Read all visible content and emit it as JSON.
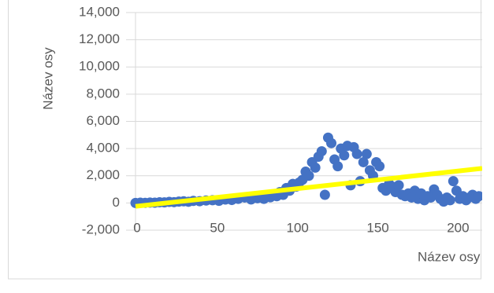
{
  "chart_data": {
    "type": "scatter",
    "y_axis_title": "Název osy",
    "x_axis_title": "Název osy",
    "xlim": [
      0,
      216
    ],
    "ylim": [
      -2000,
      14000
    ],
    "xticks": [
      0,
      50,
      100,
      150,
      200
    ],
    "yticks": [
      {
        "value": -2000,
        "label": "-2,000"
      },
      0,
      {
        "value": 2000,
        "label": "2,000"
      },
      {
        "value": 4000,
        "label": "4,000"
      },
      {
        "value": 6000,
        "label": "6,000"
      },
      {
        "value": 8000,
        "label": "8,000"
      },
      {
        "value": 10000,
        "label": "10,000"
      },
      {
        "value": 12000,
        "label": "12,000"
      },
      {
        "value": 14000,
        "label": "14,000"
      }
    ],
    "grid": true,
    "series": [
      {
        "color": "#4472c4",
        "x": [
          0,
          3,
          6,
          9,
          12,
          15,
          18,
          21,
          24,
          27,
          30,
          33,
          36,
          40,
          44,
          48,
          52,
          56,
          60,
          64,
          68,
          72,
          76,
          80,
          84,
          88,
          90,
          92,
          94,
          96,
          98,
          100,
          102,
          104,
          106,
          108,
          110,
          112,
          114,
          116,
          118,
          120,
          122,
          124,
          126,
          128,
          130,
          132,
          134,
          136,
          138,
          140,
          142,
          144,
          146,
          148,
          150,
          152,
          154,
          156,
          158,
          160,
          162,
          164,
          166,
          168,
          170,
          172,
          174,
          176,
          178,
          180,
          182,
          184,
          186,
          188,
          190,
          192,
          194,
          196,
          198,
          200,
          202,
          204,
          206,
          208,
          210,
          212,
          214
        ],
        "values": [
          0,
          20,
          10,
          30,
          20,
          50,
          40,
          80,
          60,
          100,
          120,
          90,
          150,
          130,
          180,
          200,
          160,
          250,
          220,
          300,
          400,
          260,
          350,
          300,
          420,
          500,
          800,
          600,
          1100,
          900,
          1400,
          1200,
          1500,
          1700,
          2300,
          2000,
          3000,
          2600,
          3400,
          3800,
          600,
          4800,
          4400,
          3200,
          2700,
          4000,
          3500,
          4200,
          1300,
          4100,
          3600,
          1600,
          3000,
          3600,
          2400,
          2000,
          3000,
          2700,
          1100,
          900,
          1400,
          1200,
          800,
          1300,
          600,
          500,
          700,
          400,
          900,
          300,
          700,
          200,
          500,
          400,
          1000,
          600,
          300,
          100,
          400,
          200,
          1600,
          900,
          300,
          500,
          200,
          400,
          600,
          300,
          500
        ]
      }
    ],
    "trendline": {
      "color": "#ffff00",
      "x": [
        0,
        216
      ],
      "values": [
        -250,
        2540
      ]
    }
  }
}
